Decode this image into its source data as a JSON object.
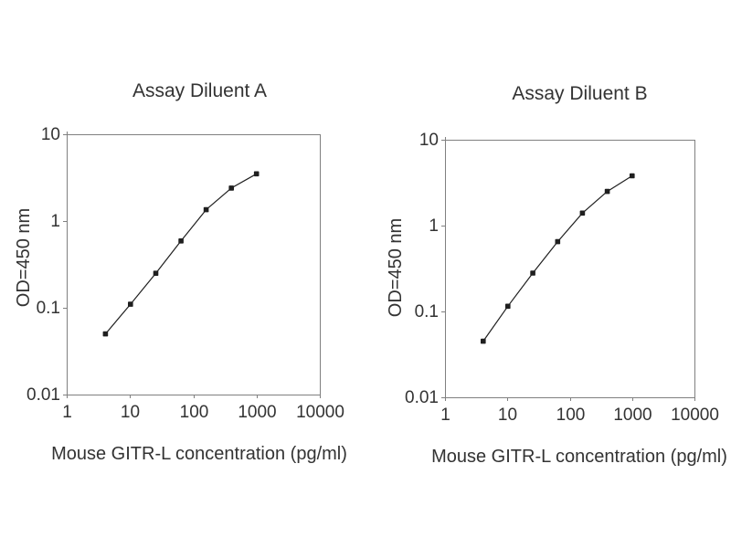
{
  "figure": {
    "background": "#ffffff",
    "axis_color": "#808080",
    "text_color": "#333333",
    "series_color": "#1f1f1f"
  },
  "chart_data": [
    {
      "type": "line",
      "title": "Assay Diluent A",
      "xlabel": "Mouse GITR-L concentration (pg/ml)",
      "ylabel": "OD=450 nm",
      "x_scale": "log",
      "y_scale": "log",
      "xlim": [
        1,
        10000
      ],
      "ylim": [
        0.01,
        10
      ],
      "x_ticks": [
        1,
        10,
        100,
        1000,
        10000
      ],
      "x_tick_labels": [
        "1",
        "10",
        "100",
        "1000",
        "10000"
      ],
      "y_ticks": [
        0.01,
        0.1,
        1,
        10
      ],
      "y_tick_labels": [
        "0.01",
        "0.1",
        "1",
        "10"
      ],
      "grid": false,
      "legend": "none",
      "marker": "square",
      "x": [
        4.1,
        10.2,
        25.6,
        64,
        160,
        400,
        1000
      ],
      "y": [
        0.05,
        0.11,
        0.25,
        0.59,
        1.35,
        2.4,
        3.5
      ]
    },
    {
      "type": "line",
      "title": "Assay Diluent B",
      "xlabel": "Mouse GITR-L concentration (pg/ml)",
      "ylabel": "OD=450 nm",
      "x_scale": "log",
      "y_scale": "log",
      "xlim": [
        1,
        10000
      ],
      "ylim": [
        0.01,
        10
      ],
      "x_ticks": [
        1,
        10,
        100,
        1000,
        10000
      ],
      "x_tick_labels": [
        "1",
        "10",
        "100",
        "1000",
        "10000"
      ],
      "y_ticks": [
        0.01,
        0.1,
        1,
        10
      ],
      "y_tick_labels": [
        "0.01",
        "0.1",
        "1",
        "10"
      ],
      "grid": false,
      "legend": "none",
      "marker": "square",
      "x": [
        4.1,
        10.2,
        25.6,
        64,
        160,
        400,
        1000
      ],
      "y": [
        0.045,
        0.115,
        0.28,
        0.65,
        1.4,
        2.5,
        3.8
      ]
    }
  ]
}
